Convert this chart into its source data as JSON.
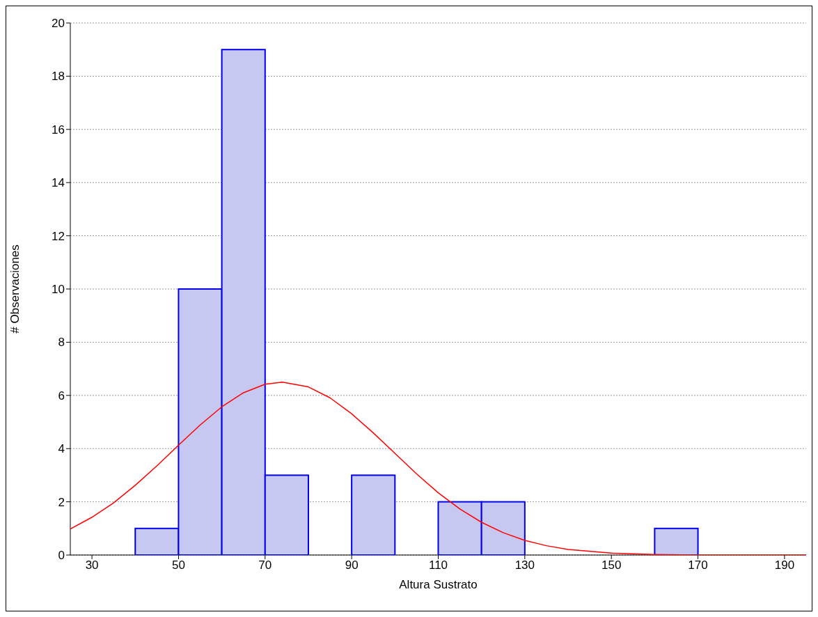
{
  "chart_data": {
    "type": "histogram",
    "xlabel": "Altura Sustrato",
    "ylabel": "# Observaciones",
    "bins": [
      40,
      50,
      60,
      70,
      80,
      90,
      100,
      110,
      120,
      130,
      140,
      150,
      160,
      170
    ],
    "values": [
      1,
      10,
      19,
      3,
      0,
      3,
      0,
      2,
      2,
      0,
      0,
      0,
      1
    ],
    "color": "#c6c8f2",
    "series": [
      {
        "type": "line",
        "color": "#ff0000",
        "x": [
          25,
          30,
          35,
          40,
          45,
          50,
          55,
          60,
          65,
          70,
          74,
          80,
          85,
          90,
          95,
          100,
          105,
          110,
          115,
          120,
          125,
          130,
          135,
          140,
          150,
          160,
          170,
          195
        ],
        "values": [
          0.98,
          1.42,
          1.96,
          2.62,
          3.35,
          4.13,
          4.89,
          5.57,
          6.1,
          6.42,
          6.5,
          6.32,
          5.91,
          5.31,
          4.59,
          3.82,
          3.05,
          2.34,
          1.73,
          1.23,
          0.84,
          0.55,
          0.35,
          0.21,
          0.07,
          0.02,
          0,
          0
        ]
      }
    ],
    "xlim": [
      25,
      195
    ],
    "xticks": [
      30,
      50,
      70,
      90,
      110,
      130,
      150,
      170,
      190
    ],
    "ylim": [
      0,
      20
    ],
    "yticks": [
      0,
      2,
      4,
      6,
      8,
      10,
      12,
      14,
      16,
      18,
      20
    ],
    "grid": "y"
  }
}
